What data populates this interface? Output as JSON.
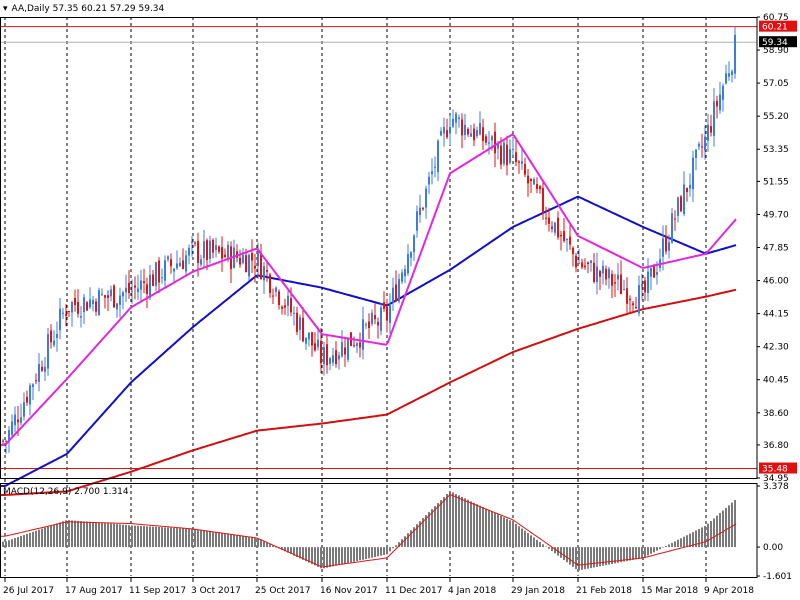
{
  "header": {
    "symbol": "AA,Daily",
    "ohlc": "57.35 60.21 57.29 59.34"
  },
  "macd_header": {
    "label": "MACD(12,26,9)",
    "values": "2.700 1.314"
  },
  "colors": {
    "up": "#3c7be0",
    "down": "#e01414",
    "ma_fast": "#e028e0",
    "ma_mid": "#1010c8",
    "ma_slow": "#d01010",
    "macd_hist": "#7a7a7a",
    "macd_signal": "#e01414",
    "hline": "#e01010",
    "grid": "#000000"
  },
  "price_labels": [
    "60.75",
    "58.90",
    "57.05",
    "55.20",
    "53.35",
    "51.55",
    "49.70",
    "47.85",
    "46.00",
    "44.15",
    "42.30",
    "40.45",
    "38.60",
    "36.80",
    "34.95"
  ],
  "price_highlights": [
    {
      "value": "60.21",
      "type": "line"
    },
    {
      "value": "59.34",
      "type": "bid"
    },
    {
      "value": "35.48",
      "type": "line"
    }
  ],
  "macd_labels": [
    "3.378",
    "0.00",
    "-1.601"
  ],
  "time_labels": [
    "26 Jul 2017",
    "17 Aug 2017",
    "11 Sep 2017",
    "3 Oct 2017",
    "25 Oct 2017",
    "16 Nov 2017",
    "11 Dec 2017",
    "4 Jan 2018",
    "29 Jan 2018",
    "21 Feb 2018",
    "15 Mar 2018",
    "9 Apr 2018"
  ],
  "chart_data": {
    "type": "candlestick",
    "price_ylim": [
      34.95,
      60.75
    ],
    "macd_ylim": [
      -1.601,
      3.378
    ],
    "price_path": [
      [
        "26 Jul 2017",
        37.0
      ],
      [
        "17 Aug 2017",
        44.6
      ],
      [
        "11 Sep 2017",
        45.4
      ],
      [
        "3 Oct 2017",
        47.6
      ],
      [
        "25 Oct 2017",
        47.2
      ],
      [
        "16 Nov 2017",
        41.6
      ],
      [
        "11 Dec 2017",
        44.0
      ],
      [
        "4 Jan 2018",
        55.2
      ],
      [
        "29 Jan 2018",
        52.8
      ],
      [
        "21 Feb 2018",
        47.0
      ],
      [
        "15 Mar 2018",
        45.0
      ],
      [
        "9 Apr 2018",
        54.0
      ],
      [
        "end",
        59.34
      ]
    ],
    "ma_fast_path": [
      [
        "26 Jul 2017",
        36.8
      ],
      [
        "17 Aug 2017",
        40.5
      ],
      [
        "11 Sep 2017",
        44.5
      ],
      [
        "3 Oct 2017",
        46.5
      ],
      [
        "25 Oct 2017",
        47.8
      ],
      [
        "16 Nov 2017",
        43.0
      ],
      [
        "11 Dec 2017",
        42.4
      ],
      [
        "4 Jan 2018",
        52.0
      ],
      [
        "29 Jan 2018",
        54.2
      ],
      [
        "21 Feb 2018",
        48.5
      ],
      [
        "15 Mar 2018",
        46.7
      ],
      [
        "9 Apr 2018",
        47.5
      ],
      [
        "end",
        49.5
      ]
    ],
    "ma_mid_path": [
      [
        "26 Jul 2017",
        34.5
      ],
      [
        "17 Aug 2017",
        36.3
      ],
      [
        "11 Sep 2017",
        40.3
      ],
      [
        "3 Oct 2017",
        43.4
      ],
      [
        "25 Oct 2017",
        46.3
      ],
      [
        "16 Nov 2017",
        45.6
      ],
      [
        "11 Dec 2017",
        44.6
      ],
      [
        "4 Jan 2018",
        46.6
      ],
      [
        "29 Jan 2018",
        49.0
      ],
      [
        "21 Feb 2018",
        50.7
      ],
      [
        "15 Mar 2018",
        49.0
      ],
      [
        "9 Apr 2018",
        47.5
      ],
      [
        "end",
        48.0
      ]
    ],
    "ma_slow_path": [
      [
        "26 Jul 2017",
        34.0
      ],
      [
        "17 Aug 2017",
        34.2
      ],
      [
        "11 Sep 2017",
        35.3
      ],
      [
        "3 Oct 2017",
        36.5
      ],
      [
        "25 Oct 2017",
        37.6
      ],
      [
        "16 Nov 2017",
        38.0
      ],
      [
        "11 Dec 2017",
        38.5
      ],
      [
        "4 Jan 2018",
        40.3
      ],
      [
        "29 Jan 2018",
        42.0
      ],
      [
        "21 Feb 2018",
        43.3
      ],
      [
        "15 Mar 2018",
        44.4
      ],
      [
        "9 Apr 2018",
        45.1
      ],
      [
        "end",
        45.5
      ]
    ],
    "macd_hist_path": [
      [
        "26 Jul 2017",
        0.3
      ],
      [
        "17 Aug 2017",
        1.5
      ],
      [
        "11 Sep 2017",
        1.2
      ],
      [
        "3 Oct 2017",
        1.0
      ],
      [
        "25 Oct 2017",
        0.5
      ],
      [
        "16 Nov 2017",
        -1.2
      ],
      [
        "11 Dec 2017",
        -0.4
      ],
      [
        "4 Jan 2018",
        3.1
      ],
      [
        "29 Jan 2018",
        1.4
      ],
      [
        "21 Feb 2018",
        -1.3
      ],
      [
        "15 Mar 2018",
        -0.6
      ],
      [
        "9 Apr 2018",
        1.2
      ],
      [
        "end",
        2.7
      ]
    ],
    "macd_signal_path": [
      [
        "26 Jul 2017",
        0.6
      ],
      [
        "17 Aug 2017",
        1.4
      ],
      [
        "11 Sep 2017",
        1.3
      ],
      [
        "3 Oct 2017",
        1.0
      ],
      [
        "25 Oct 2017",
        0.5
      ],
      [
        "16 Nov 2017",
        -1.1
      ],
      [
        "11 Dec 2017",
        -0.6
      ],
      [
        "4 Jan 2018",
        2.9
      ],
      [
        "29 Jan 2018",
        1.5
      ],
      [
        "21 Feb 2018",
        -1.0
      ],
      [
        "15 Mar 2018",
        -0.6
      ],
      [
        "9 Apr 2018",
        0.3
      ],
      [
        "end",
        1.314
      ]
    ],
    "time_labels": [
      "26 Jul 2017",
      "17 Aug 2017",
      "11 Sep 2017",
      "3 Oct 2017",
      "25 Oct 2017",
      "16 Nov 2017",
      "11 Dec 2017",
      "4 Jan 2018",
      "29 Jan 2018",
      "21 Feb 2018",
      "15 Mar 2018",
      "9 Apr 2018"
    ],
    "grid": "vertical-dashed"
  }
}
